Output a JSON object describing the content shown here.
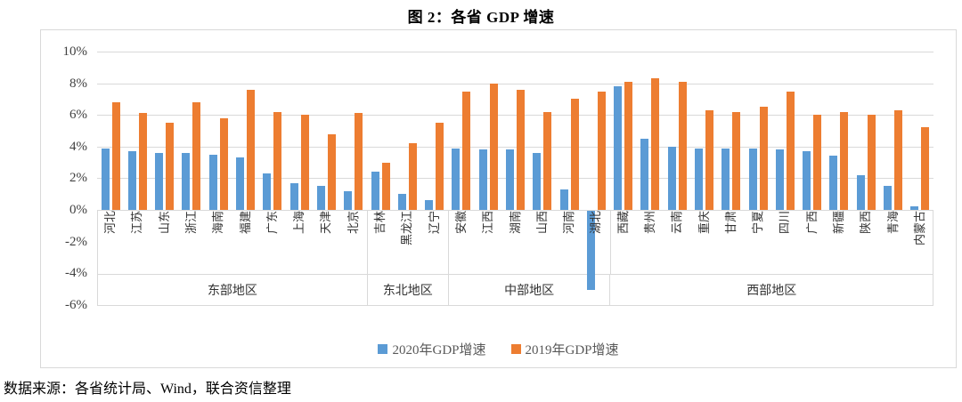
{
  "title": "图 2：各省 GDP 增速",
  "source": "数据来源：各省统计局、Wind，联合资信整理",
  "chart_data": {
    "type": "bar",
    "title": "图 2：各省 GDP 增速",
    "ylim": [
      -6,
      10
    ],
    "ytick_step": 2,
    "yticks": [
      "10%",
      "8%",
      "6%",
      "4%",
      "2%",
      "0%",
      "-2%",
      "-4%",
      "-6%"
    ],
    "grid": true,
    "legend_position": "bottom",
    "categories": [
      "河北",
      "江苏",
      "山东",
      "浙江",
      "海南",
      "福建",
      "广东",
      "上海",
      "天津",
      "北京",
      "吉林",
      "黑龙江",
      "辽宁",
      "安徽",
      "江西",
      "湖南",
      "山西",
      "河南",
      "湖北",
      "西藏",
      "贵州",
      "云南",
      "重庆",
      "甘肃",
      "宁夏",
      "四川",
      "广西",
      "新疆",
      "陕西",
      "青海",
      "内蒙古"
    ],
    "series": [
      {
        "name": "2020年GDP增速",
        "color": "#5B9BD5",
        "values": [
          3.9,
          3.7,
          3.6,
          3.6,
          3.5,
          3.3,
          2.3,
          1.7,
          1.5,
          1.2,
          2.4,
          1.0,
          0.6,
          3.9,
          3.8,
          3.8,
          3.6,
          1.3,
          -5.0,
          7.8,
          4.5,
          4.0,
          3.9,
          3.9,
          3.9,
          3.8,
          3.7,
          3.4,
          2.2,
          1.5,
          0.2
        ]
      },
      {
        "name": "2019年GDP增速",
        "color": "#ED7D31",
        "values": [
          6.8,
          6.1,
          5.5,
          6.8,
          5.8,
          7.6,
          6.2,
          6.0,
          4.8,
          6.1,
          3.0,
          4.2,
          5.5,
          7.5,
          8.0,
          7.6,
          6.2,
          7.0,
          7.5,
          8.1,
          8.3,
          8.1,
          6.3,
          6.2,
          6.5,
          7.5,
          6.0,
          6.2,
          6.0,
          6.3,
          5.2
        ]
      }
    ],
    "groups": [
      {
        "label": "东部地区",
        "name": "east",
        "count": 10
      },
      {
        "label": "东北地区",
        "name": "northeast",
        "count": 3
      },
      {
        "label": "中部地区",
        "name": "central",
        "count": 6
      },
      {
        "label": "西部地区",
        "name": "west",
        "count": 12
      }
    ]
  },
  "colors": {
    "bar_2020": "#5B9BD5",
    "bar_2019": "#ED7D31",
    "gridline": "#D9D9D9",
    "axis_text": "#404040",
    "legend_text": "#595959"
  }
}
